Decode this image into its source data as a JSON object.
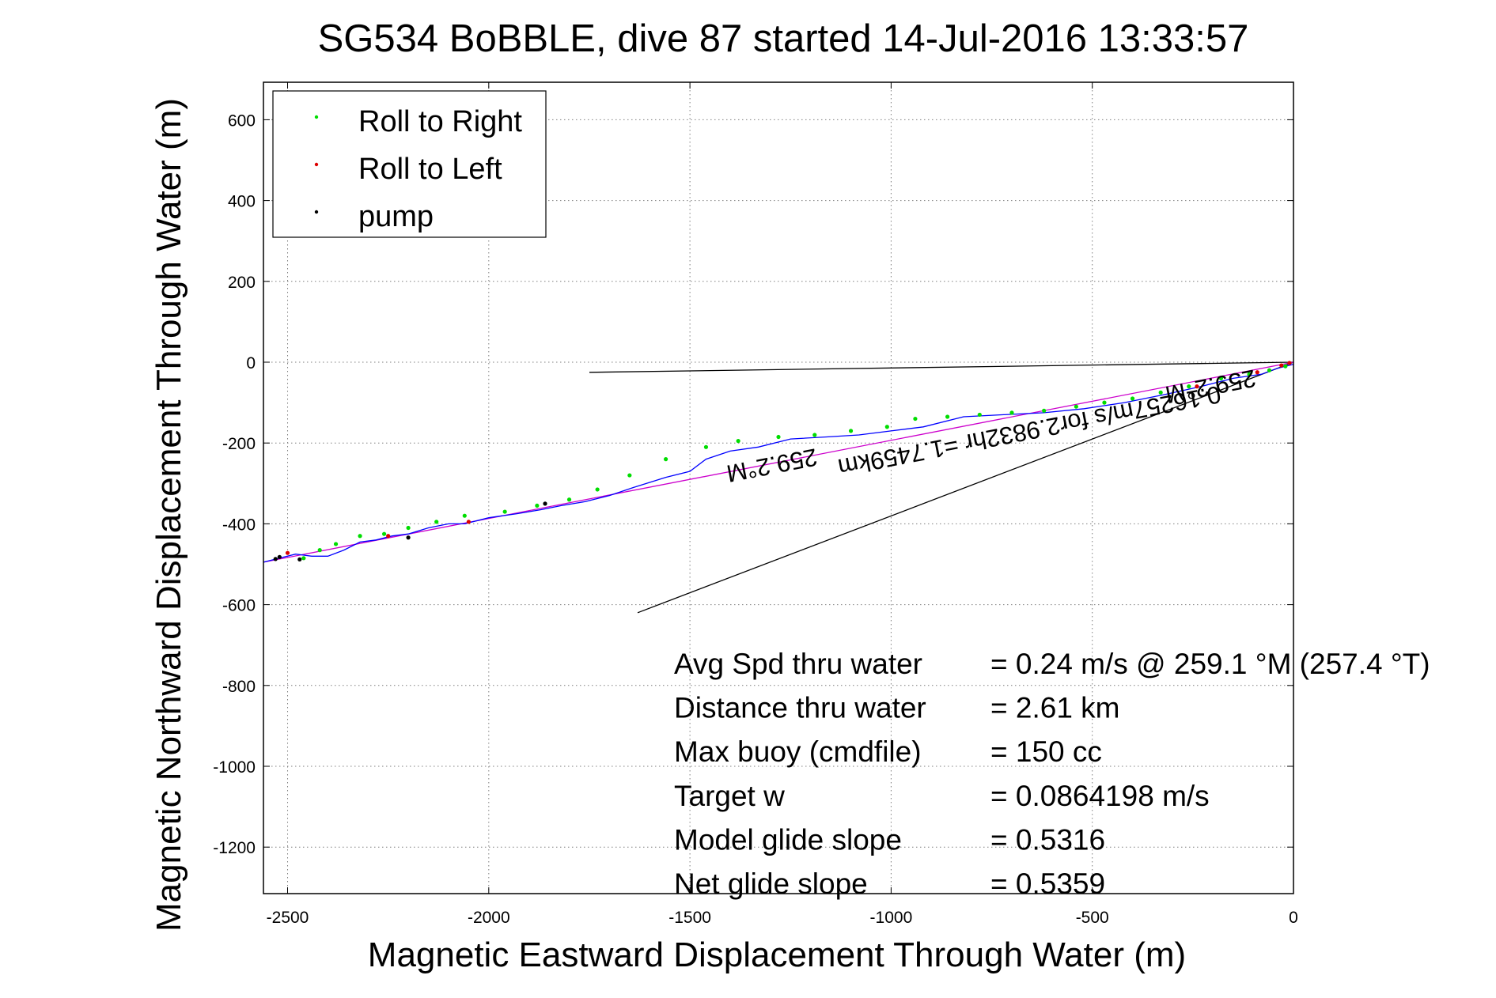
{
  "chart_data": {
    "type": "line",
    "title": "SG534 BoBBLE, dive 87 started 14-Jul-2016 13:33:57",
    "xlabel": "Magnetic Eastward Displacement Through Water (m)",
    "ylabel": "Magnetic Northward Displacement Through Water (m)",
    "xlim": [
      -2560,
      0
    ],
    "ylim": [
      -1320,
      700
    ],
    "xticks": [
      -2500,
      -2000,
      -1500,
      -1000,
      -500,
      0
    ],
    "xtick_labels": [
      "-2500",
      "-2000",
      "-1500",
      "-1000",
      "-500",
      "0"
    ],
    "yticks": [
      600,
      400,
      200,
      0,
      -200,
      -400,
      -600,
      -800,
      -1000,
      -1200
    ],
    "ytick_labels": [
      "600",
      "400",
      "200",
      "0",
      "-200",
      "-400",
      "-600",
      "-800",
      "-1000",
      "-1200"
    ],
    "grid": true,
    "legend": {
      "placement": "top-left",
      "entries": [
        {
          "name": "Roll to Right",
          "color": "#00dd00"
        },
        {
          "name": "Roll to Left",
          "color": "#dd0000"
        },
        {
          "name": "pump",
          "color": "#000000"
        }
      ]
    },
    "track": {
      "name": "glider track",
      "color": "#0000ff",
      "x": [
        0,
        -40,
        -80,
        -150,
        -230,
        -320,
        -420,
        -520,
        -620,
        -720,
        -820,
        -920,
        -1000,
        -1080,
        -1160,
        -1250,
        -1330,
        -1400,
        -1460,
        -1500,
        -1560,
        -1640,
        -1700,
        -1760,
        -1820,
        -1870,
        -1930,
        -2000,
        -2060,
        -2100,
        -2150,
        -2200,
        -2240,
        -2280,
        -2320,
        -2360,
        -2400,
        -2440,
        -2480,
        -2520,
        -2560
      ],
      "y": [
        -5,
        -15,
        -30,
        -40,
        -60,
        -80,
        -100,
        -115,
        -125,
        -130,
        -135,
        -160,
        -170,
        -180,
        -185,
        -190,
        -210,
        -220,
        -240,
        -270,
        -285,
        -310,
        -330,
        -345,
        -355,
        -365,
        -375,
        -385,
        -400,
        -400,
        -410,
        -425,
        -430,
        -440,
        -445,
        -465,
        -480,
        -480,
        -475,
        -485,
        -495
      ]
    },
    "net_line": {
      "color": "#cc00cc",
      "x": [
        0,
        -2560
      ],
      "y": [
        0,
        -495
      ]
    },
    "heading_line": {
      "color": "#000000",
      "x": [
        0,
        -1750
      ],
      "y": [
        0,
        -25
      ]
    },
    "current_line": {
      "color": "#000000",
      "x": [
        0,
        -1630
      ],
      "y": [
        0,
        -620
      ]
    },
    "roll_right_points": {
      "x": [
        -20,
        -60,
        -110,
        -180,
        -260,
        -330,
        -400,
        -470,
        -540,
        -620,
        -700,
        -780,
        -860,
        -940,
        -1010,
        -1100,
        -1190,
        -1280,
        -1380,
        -1460,
        -1560,
        -1650,
        -1730,
        -1800,
        -1880,
        -1960,
        -2060,
        -2130,
        -2200,
        -2260,
        -2320,
        -2380,
        -2420,
        -2460
      ],
      "y": [
        -10,
        -20,
        -30,
        -40,
        -60,
        -75,
        -90,
        -100,
        -110,
        -120,
        -125,
        -130,
        -135,
        -140,
        -160,
        -170,
        -180,
        -185,
        -195,
        -210,
        -240,
        -280,
        -315,
        -340,
        -355,
        -370,
        -380,
        -395,
        -410,
        -425,
        -430,
        -450,
        -465,
        -485
      ]
    },
    "roll_left_points": {
      "x": [
        -10,
        -30,
        -90,
        -240,
        -2050,
        -2250,
        -2500
      ],
      "y": [
        -2,
        -8,
        -25,
        -60,
        -395,
        -430,
        -472
      ]
    },
    "pump_points": {
      "x": [
        -2530,
        -2520,
        -2470,
        -2200,
        -1860
      ],
      "y": [
        -487,
        -482,
        -488,
        -434,
        -350
      ]
    },
    "annotations": [
      {
        "text": "259.2°M",
        "x": -210,
        "y": -40
      },
      {
        "text": "0.16257m/s for2.9832hr =1.7459km",
        "x": -660,
        "y": -150
      },
      {
        "text": "259.2°M",
        "x": -1300,
        "y": -235
      }
    ],
    "stats": [
      {
        "label": "Avg Spd thru water",
        "value": "=  0.24 m/s @ 259.1 °M (257.4 °T)"
      },
      {
        "label": "Distance thru water",
        "value": "=  2.61 km"
      },
      {
        "label": "Max buoy (cmdfile)",
        "value": "= 150 cc"
      },
      {
        "label": "Target w",
        "value": "= 0.0864198 m/s"
      },
      {
        "label": "Model glide slope",
        "value": "= 0.5316"
      },
      {
        "label": "Net glide slope",
        "value": "= 0.5359"
      }
    ]
  }
}
